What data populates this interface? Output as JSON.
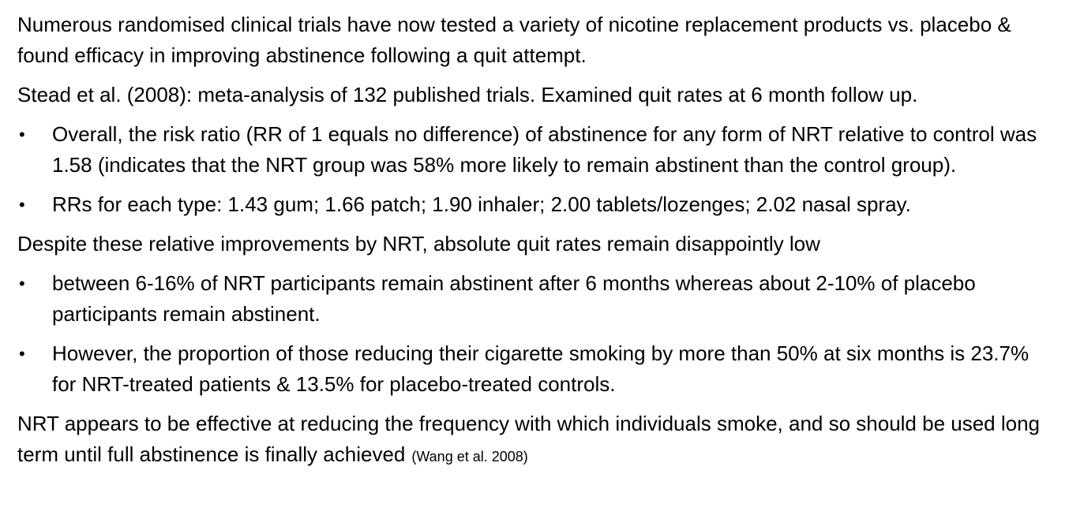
{
  "slide": {
    "intro": "Numerous randomised clinical trials have now tested a variety of nicotine replacement products vs. placebo & found efficacy in improving abstinence following a quit attempt.",
    "stead": "Stead et al. (2008): meta-analysis of 132 published trials. Examined quit rates at 6 month follow up.",
    "stead_bullets": [
      "Overall, the risk ratio (RR of 1 equals no difference) of abstinence for any form of NRT relative to control was 1.58 (indicates that the NRT group was 58% more likely to remain abstinent than the control group).",
      "RRs for each type: 1.43 gum; 1.66 patch; 1.90 inhaler; 2.00 tablets/lozenges; 2.02 nasal spray."
    ],
    "despite": "Despite these relative improvements by NRT, absolute quit rates remain disappointly low",
    "despite_bullets": [
      "between 6-16% of NRT participants remain abstinent after 6 months whereas about 2-10% of placebo participants remain abstinent.",
      "However, the proportion of those reducing their cigarette smoking by more than 50% at six months is 23.7% for NRT-treated patients & 13.5% for placebo-treated controls."
    ],
    "conclusion": "NRT appears to be effective at reducing the frequency with which individuals smoke, and so should be used long term until full abstinence is finally achieved",
    "citation": "(Wang et al. 2008)",
    "bullet_symbol": "•"
  }
}
